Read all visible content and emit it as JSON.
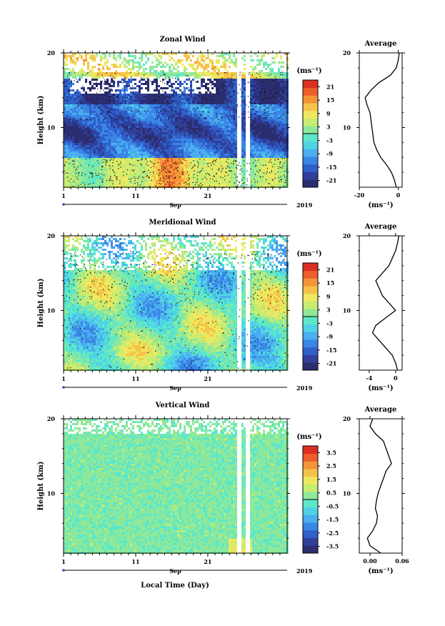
{
  "xlabel": "Local Time (Day)",
  "chart_data": [
    {
      "type": "heatmap",
      "title": "Zonal Wind",
      "ylabel": "Height (km)",
      "xlim": [
        1,
        32
      ],
      "ylim": [
        2,
        20
      ],
      "x_ticks": [
        "1",
        "11",
        "21"
      ],
      "y_ticks": [
        "20",
        "10"
      ],
      "month_label": "Sep",
      "year_label": "2019",
      "colorbar": {
        "unit_label": "(ms⁻¹)",
        "ticks": [
          "21",
          "15",
          "9",
          "3",
          "-3",
          "-9",
          "-15",
          "-21"
        ],
        "range": [
          -24,
          24
        ]
      },
      "profile": {
        "title": "Average",
        "xlim": [
          -20,
          2
        ],
        "x_ticks": [
          "-20",
          "0"
        ],
        "y_ticks": [
          "20",
          "10"
        ],
        "unit_label": "(ms⁻¹)",
        "heights": [
          2,
          3,
          4,
          5,
          6,
          7,
          8,
          9,
          10,
          11,
          12,
          13,
          14,
          15,
          16,
          17,
          18,
          19,
          20
        ],
        "values": [
          -1,
          -2,
          -3.5,
          -6,
          -9,
          -11,
          -12.5,
          -13,
          -13.5,
          -14,
          -14.5,
          -16,
          -17,
          -14,
          -10,
          -4,
          -1,
          0,
          0.5
        ]
      }
    },
    {
      "type": "heatmap",
      "title": "Meridional Wind",
      "ylabel": "Height (km)",
      "xlim": [
        1,
        32
      ],
      "ylim": [
        2,
        20
      ],
      "x_ticks": [
        "1",
        "11",
        "21"
      ],
      "y_ticks": [
        "20",
        "10"
      ],
      "month_label": "Sep",
      "year_label": "2019",
      "colorbar": {
        "unit_label": "(ms⁻¹)",
        "ticks": [
          "21",
          "15",
          "9",
          "3",
          "-3",
          "-9",
          "-15",
          "-21"
        ],
        "range": [
          -24,
          24
        ]
      },
      "profile": {
        "title": "Average",
        "xlim": [
          -5.5,
          1
        ],
        "x_ticks": [
          "-4",
          "0"
        ],
        "y_ticks": [
          "20",
          "10"
        ],
        "unit_label": "(ms⁻¹)",
        "heights": [
          2,
          3,
          4,
          5,
          6,
          7,
          8,
          9,
          10,
          11,
          12,
          13,
          14,
          15,
          16,
          17,
          18,
          19,
          20
        ],
        "values": [
          0.3,
          0,
          -0.5,
          -1.5,
          -2.5,
          -3.5,
          -3,
          -1.5,
          0,
          -1,
          -2,
          -2.5,
          -3,
          -2,
          -1,
          -0.5,
          0,
          0.3,
          0.5
        ]
      }
    },
    {
      "type": "heatmap",
      "title": "Vertical Wind",
      "ylabel": "Height (km)",
      "xlim": [
        1,
        32
      ],
      "ylim": [
        2,
        20
      ],
      "x_ticks": [
        "1",
        "11",
        "21"
      ],
      "y_ticks": [
        "20",
        "10"
      ],
      "month_label": "Sep",
      "year_label": "2019",
      "colorbar": {
        "unit_label": "(ms⁻¹)",
        "ticks": [
          "3.5",
          "2.5",
          "1.5",
          "0.5",
          "-0.5",
          "-1.5",
          "-2.5",
          "-3.5"
        ],
        "range": [
          -4,
          4
        ]
      },
      "profile": {
        "title": "Average",
        "xlim": [
          -0.02,
          0.06
        ],
        "x_ticks": [
          "0.00",
          "0.06"
        ],
        "y_ticks": [
          "20",
          "10"
        ],
        "unit_label": "(ms⁻¹)",
        "heights": [
          2,
          3,
          4,
          5,
          6,
          7,
          8,
          9,
          10,
          11,
          12,
          13,
          14,
          15,
          16,
          17,
          18,
          19,
          20
        ],
        "values": [
          0.02,
          0.0,
          -0.005,
          0.005,
          0.012,
          0.014,
          0.01,
          0.012,
          0.015,
          0.02,
          0.025,
          0.03,
          0.04,
          0.035,
          0.03,
          0.025,
          0.01,
          0.0,
          0.005
        ]
      }
    }
  ],
  "palette": [
    "#2b2d6e",
    "#2f3f9a",
    "#2f5fc8",
    "#3a86e6",
    "#4aaef0",
    "#4fd2e6",
    "#5ce8c8",
    "#8fe89a",
    "#c6ec72",
    "#eee860",
    "#f6c348",
    "#f49438",
    "#ec5e2c",
    "#dc2f24"
  ]
}
